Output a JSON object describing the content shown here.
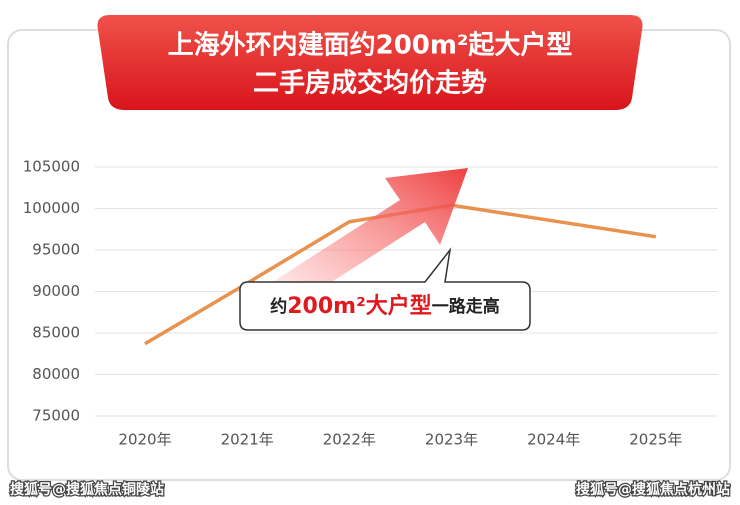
{
  "chart_data": {
    "type": "line",
    "title": [
      "上海外环内建面约200m²起大户型",
      "二手房成交均价走势"
    ],
    "categories": [
      "2020年",
      "2021年",
      "2022年",
      "2023年",
      "2024年",
      "2025年"
    ],
    "series": [
      {
        "name": null,
        "color": "#e8924e",
        "values": [
          83700,
          91000,
          98400,
          100400,
          98500,
          96600
        ]
      }
    ],
    "ylim": [
      75000,
      105000
    ],
    "yticks": [
      75000,
      80000,
      85000,
      90000,
      95000,
      100000,
      105000
    ],
    "grid": true,
    "annotation": {
      "prefix": "约",
      "highlight": "200m²大户型",
      "suffix": "一路走高"
    }
  },
  "watermarks": [
    "搜狐号@搜狐焦点铜陵站",
    "搜狐号@搜狐焦点杭州站"
  ]
}
